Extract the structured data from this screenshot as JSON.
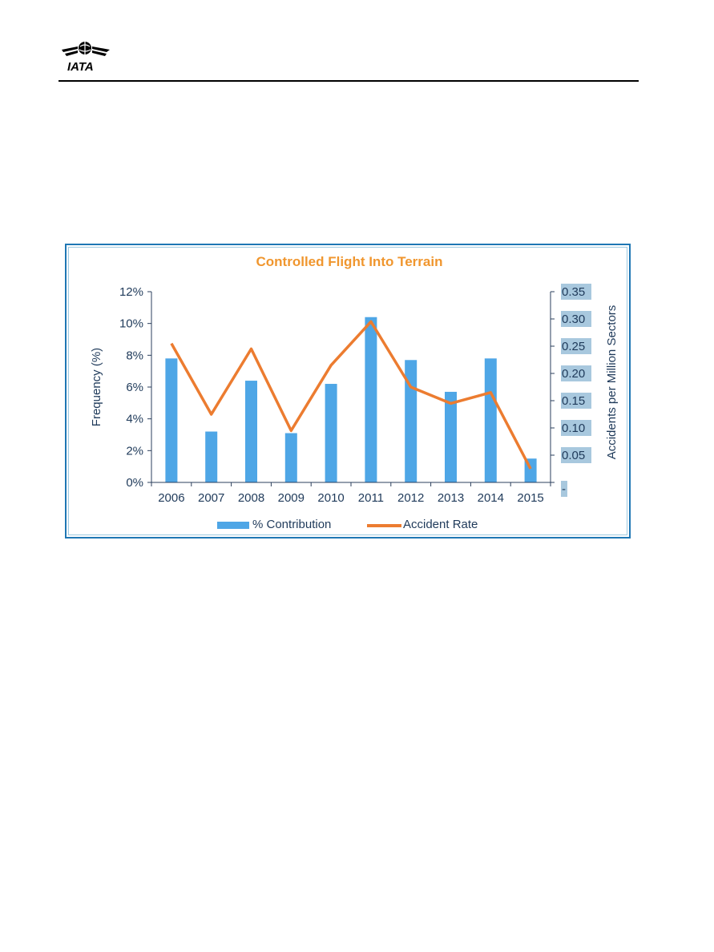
{
  "header": {
    "logo_text": "IATA",
    "logo_icon": "globe-wings-icon"
  },
  "colors": {
    "bar": "#4ea6e6",
    "line": "#ec7c30",
    "title": "#f0962e",
    "axis": "#2b3f5c",
    "right_tick_bg": "#a8c8de",
    "frame": "#1f77b4"
  },
  "chart_data": {
    "type": "bar",
    "title": "Controlled Flight Into Terrain",
    "categories": [
      "2006",
      "2007",
      "2008",
      "2009",
      "2010",
      "2011",
      "2012",
      "2013",
      "2014",
      "2015"
    ],
    "series": [
      {
        "name": "% Contribution",
        "type": "bar",
        "axis": "left",
        "values": [
          7.8,
          3.2,
          6.4,
          3.1,
          6.2,
          10.4,
          7.7,
          5.7,
          7.8,
          1.5
        ]
      },
      {
        "name": "Accident Rate",
        "type": "line",
        "axis": "right",
        "values": [
          0.255,
          0.125,
          0.245,
          0.095,
          0.215,
          0.295,
          0.175,
          0.145,
          0.165,
          0.025
        ]
      }
    ],
    "ylabel": "Frequency (%)",
    "ylim": [
      0,
      12
    ],
    "yticks": [
      "0%",
      "2%",
      "4%",
      "6%",
      "8%",
      "10%",
      "12%"
    ],
    "y2label": "Accidents per Million Sectors",
    "y2lim": [
      0,
      0.35
    ],
    "y2ticks": [
      "-",
      "0.05",
      "0.10",
      "0.15",
      "0.20",
      "0.25",
      "0.30",
      "0.35"
    ],
    "legend": "bottom",
    "grid": false
  }
}
